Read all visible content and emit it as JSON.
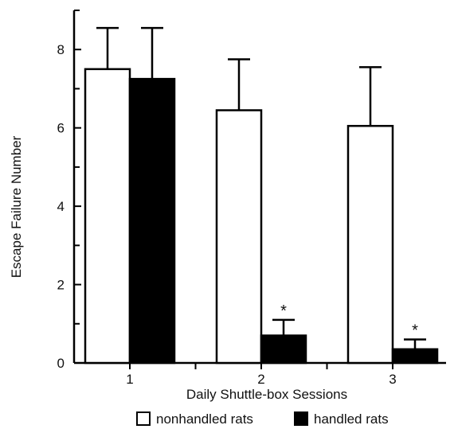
{
  "chart_data": {
    "type": "bar",
    "categories": [
      "1",
      "2",
      "3"
    ],
    "series": [
      {
        "name": "nonhandled rats",
        "values": [
          7.5,
          6.45,
          6.05
        ],
        "errors": [
          1.05,
          1.3,
          1.5
        ],
        "fill": "#ffffff",
        "significant": [
          false,
          false,
          false
        ]
      },
      {
        "name": "handled rats",
        "values": [
          7.25,
          0.7,
          0.35
        ],
        "errors": [
          1.3,
          0.4,
          0.25
        ],
        "fill": "#000000",
        "significant": [
          false,
          true,
          true
        ]
      }
    ],
    "xlabel": "Daily Shuttle-box Sessions",
    "ylabel": "Escape Failure Number",
    "ylim": [
      0,
      9
    ],
    "yticks": [
      "0",
      "2",
      "4",
      "6",
      "8"
    ],
    "significance_marker": "*",
    "legend_position": "bottom-center",
    "grid": false
  }
}
